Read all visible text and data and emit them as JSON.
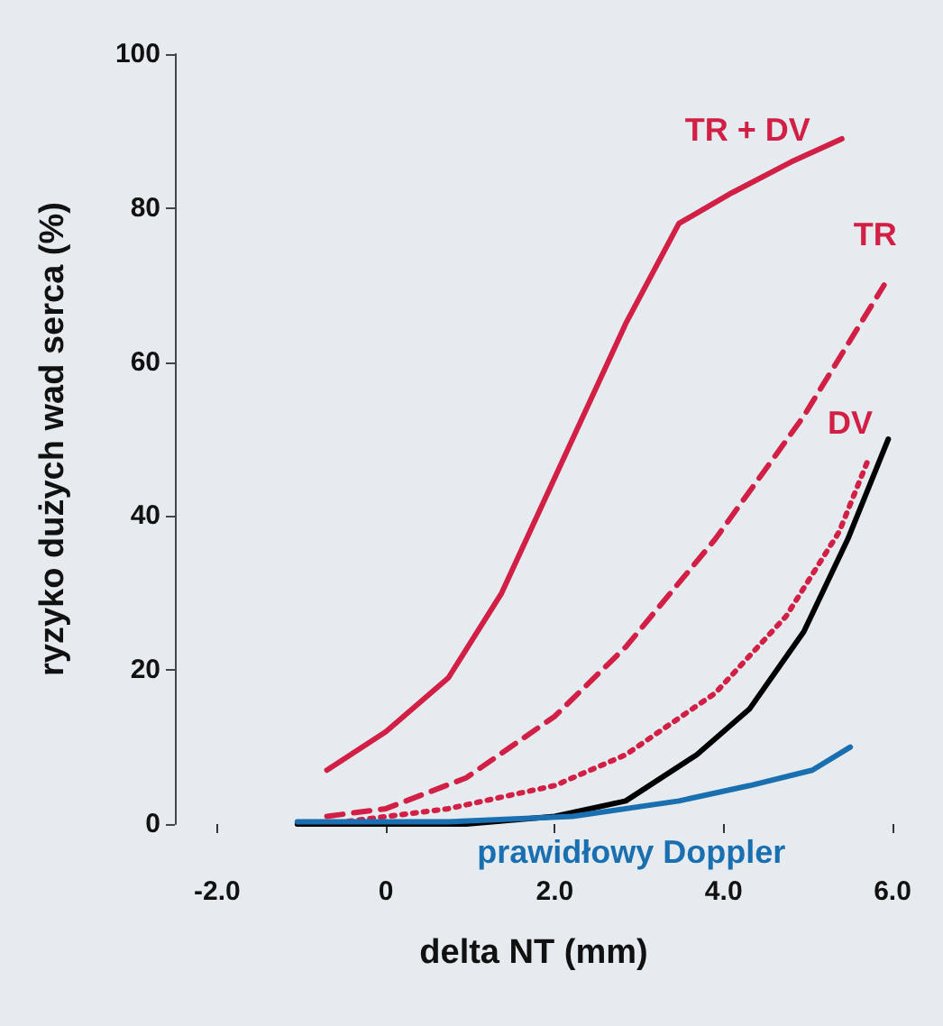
{
  "chart_data": {
    "type": "line",
    "xlabel": "delta NT (mm)",
    "ylabel": "ryzyko dużych wad serca (%)",
    "xlim": [
      -2.5,
      6
    ],
    "xticks": [
      {
        "value": -2,
        "label": "-2.0"
      },
      {
        "value": 0,
        "label": "0"
      },
      {
        "value": 2,
        "label": "2.0"
      },
      {
        "value": 4,
        "label": "4.0"
      },
      {
        "value": 6,
        "label": "6.0"
      }
    ],
    "ylim": [
      0,
      100
    ],
    "yticks": [
      0,
      20,
      40,
      60,
      80,
      100
    ],
    "grid": false,
    "marker": "none",
    "series": [
      {
        "name": "TR + DV",
        "color": "#d21f45",
        "line_style": "solid",
        "x": [
          -0.7,
          0,
          0.74,
          1.37,
          2.0,
          2.84,
          3.47,
          4.1,
          4.8,
          5.4
        ],
        "values": [
          7,
          12,
          19,
          30,
          45,
          65,
          78,
          82,
          86,
          89
        ]
      },
      {
        "name": "TR",
        "color": "#d21f45",
        "line_style": "dashed",
        "x": [
          -0.7,
          0,
          0.95,
          2.0,
          2.84,
          3.9,
          4.95,
          5.9
        ],
        "values": [
          1,
          2,
          6,
          14,
          23,
          37,
          53,
          70
        ]
      },
      {
        "name": "DV",
        "color": "#d21f45",
        "line_style": "dotted",
        "x": [
          -0.7,
          0.74,
          2.0,
          2.84,
          3.9,
          4.74,
          5.37,
          5.7
        ],
        "values": [
          0,
          2,
          5,
          9,
          17,
          27,
          38,
          47
        ]
      },
      {
        "color": "#000000",
        "line_style": "solid",
        "x": [
          -1.05,
          0.95,
          2.0,
          2.84,
          3.68,
          4.31,
          4.95,
          5.47,
          5.95
        ],
        "values": [
          0,
          0,
          1,
          3,
          9,
          15,
          25,
          37,
          50
        ]
      },
      {
        "name": "prawidłowy Doppler",
        "color": "#1a6fb0",
        "line_style": "solid",
        "x": [
          -1.05,
          0.74,
          2.21,
          3.47,
          4.31,
          5.05,
          5.5
        ],
        "values": [
          0.3,
          0.3,
          1,
          3,
          5,
          7,
          10
        ]
      }
    ]
  }
}
